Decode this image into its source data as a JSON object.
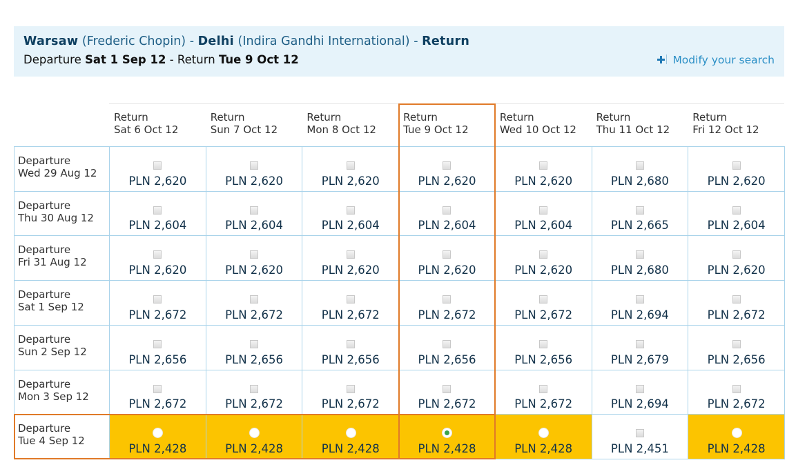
{
  "header": {
    "title": {
      "origin": "Warsaw",
      "origin_airport": "(Frederic Chopin)",
      "separator": "-",
      "destination": "Delhi",
      "destination_airport": "(Indira Gandhi International)",
      "separator_2": "-",
      "trip_type": "Return"
    },
    "dates": {
      "departure_label": "Departure",
      "departure_date": "Sat 1 Sep 12",
      "separator": "-",
      "return_label": "Return",
      "return_date": "Tue 9 Oct 12"
    },
    "modify_link": "Modify your search"
  },
  "table": {
    "columns": [
      {
        "label": "Return",
        "date": "Sat 6 Oct 12"
      },
      {
        "label": "Return",
        "date": "Sun 7 Oct 12"
      },
      {
        "label": "Return",
        "date": "Mon 8 Oct 12"
      },
      {
        "label": "Return",
        "date": "Tue 9 Oct 12"
      },
      {
        "label": "Return",
        "date": "Wed 10 Oct 12"
      },
      {
        "label": "Return",
        "date": "Thu 11 Oct 12"
      },
      {
        "label": "Return",
        "date": "Fri 12 Oct 12"
      }
    ],
    "rows": [
      {
        "label": "Departure",
        "date": "Wed 29 Aug 12",
        "prices": [
          "PLN 2,620",
          "PLN 2,620",
          "PLN 2,620",
          "PLN 2,620",
          "PLN 2,620",
          "PLN 2,680",
          "PLN 2,620"
        ]
      },
      {
        "label": "Departure",
        "date": "Thu 30 Aug 12",
        "prices": [
          "PLN 2,604",
          "PLN 2,604",
          "PLN 2,604",
          "PLN 2,604",
          "PLN 2,604",
          "PLN 2,665",
          "PLN 2,604"
        ]
      },
      {
        "label": "Departure",
        "date": "Fri 31 Aug 12",
        "prices": [
          "PLN 2,620",
          "PLN 2,620",
          "PLN 2,620",
          "PLN 2,620",
          "PLN 2,620",
          "PLN 2,680",
          "PLN 2,620"
        ]
      },
      {
        "label": "Departure",
        "date": "Sat 1 Sep 12",
        "prices": [
          "PLN 2,672",
          "PLN 2,672",
          "PLN 2,672",
          "PLN 2,672",
          "PLN 2,672",
          "PLN 2,694",
          "PLN 2,672"
        ]
      },
      {
        "label": "Departure",
        "date": "Sun 2 Sep 12",
        "prices": [
          "PLN 2,656",
          "PLN 2,656",
          "PLN 2,656",
          "PLN 2,656",
          "PLN 2,656",
          "PLN 2,679",
          "PLN 2,656"
        ]
      },
      {
        "label": "Departure",
        "date": "Mon 3 Sep 12",
        "prices": [
          "PLN 2,672",
          "PLN 2,672",
          "PLN 2,672",
          "PLN 2,672",
          "PLN 2,672",
          "PLN 2,694",
          "PLN 2,672"
        ]
      },
      {
        "label": "Departure",
        "date": "Tue 4 Sep 12",
        "prices": [
          "PLN 2,428",
          "PLN 2,428",
          "PLN 2,428",
          "PLN 2,428",
          "PLN 2,428",
          "PLN 2,451",
          "PLN 2,428"
        ]
      }
    ]
  }
}
